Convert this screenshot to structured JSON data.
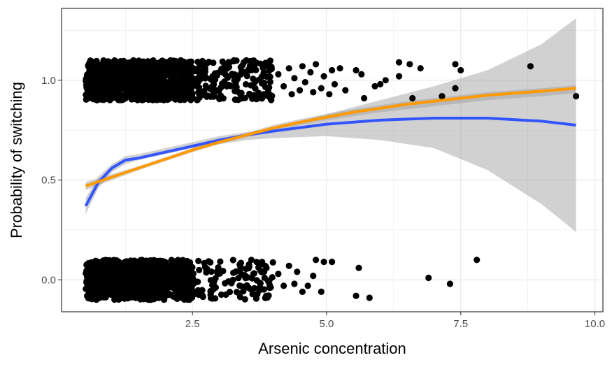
{
  "chart_data": {
    "type": "scatter",
    "title": "",
    "xlabel": "Arsenic concentration",
    "ylabel": "Probability of switching",
    "xlim": [
      0.06,
      10.15
    ],
    "ylim": [
      -0.16,
      1.36
    ],
    "x_ticks": [
      2.5,
      5.0,
      7.5,
      10.0
    ],
    "x_tick_labels": [
      "2.5",
      "5.0",
      "7.5",
      "10.0"
    ],
    "y_ticks": [
      0.0,
      0.5,
      1.0
    ],
    "y_tick_labels": [
      "0.0",
      "0.5",
      "1.0"
    ],
    "grid": true,
    "legend": "none",
    "jitter_height": 0.1,
    "colors": {
      "points": "#000000",
      "loess": "#3355ff",
      "logistic": "#ff9900",
      "ribbon": "#999999",
      "grid": "#ebebeb",
      "panel_border": "#333333"
    },
    "clusters": [
      {
        "y": 1,
        "x_range": [
          0.51,
          2.5
        ],
        "approx_count": 1000
      },
      {
        "y": 1,
        "x_range": [
          2.5,
          4.0
        ],
        "approx_count": 170
      },
      {
        "y": 0,
        "x_range": [
          0.51,
          2.5
        ],
        "approx_count": 800
      },
      {
        "y": 0,
        "x_range": [
          2.5,
          4.0
        ],
        "approx_count": 120
      }
    ],
    "points": [
      {
        "x": 4.1,
        "y": 1.03
      },
      {
        "x": 4.2,
        "y": 0.97
      },
      {
        "x": 4.3,
        "y": 1.06
      },
      {
        "x": 4.35,
        "y": 0.93
      },
      {
        "x": 4.4,
        "y": 1.01
      },
      {
        "x": 4.5,
        "y": 0.95
      },
      {
        "x": 4.55,
        "y": 1.07
      },
      {
        "x": 4.6,
        "y": 0.99
      },
      {
        "x": 4.7,
        "y": 1.04
      },
      {
        "x": 4.75,
        "y": 0.94
      },
      {
        "x": 4.8,
        "y": 1.08
      },
      {
        "x": 4.9,
        "y": 0.96
      },
      {
        "x": 4.95,
        "y": 1.02
      },
      {
        "x": 5.05,
        "y": 0.93
      },
      {
        "x": 5.1,
        "y": 1.05
      },
      {
        "x": 5.15,
        "y": 0.98
      },
      {
        "x": 5.25,
        "y": 1.06
      },
      {
        "x": 5.35,
        "y": 0.95
      },
      {
        "x": 5.55,
        "y": 1.05
      },
      {
        "x": 5.65,
        "y": 1.03
      },
      {
        "x": 5.7,
        "y": 0.91
      },
      {
        "x": 5.9,
        "y": 0.97
      },
      {
        "x": 6.0,
        "y": 0.98
      },
      {
        "x": 6.1,
        "y": 1.0
      },
      {
        "x": 6.35,
        "y": 1.09
      },
      {
        "x": 6.35,
        "y": 1.02
      },
      {
        "x": 6.55,
        "y": 1.08
      },
      {
        "x": 6.6,
        "y": 0.91
      },
      {
        "x": 6.75,
        "y": 1.06
      },
      {
        "x": 7.15,
        "y": 0.92
      },
      {
        "x": 7.4,
        "y": 0.96
      },
      {
        "x": 7.4,
        "y": 1.08
      },
      {
        "x": 7.5,
        "y": 1.05
      },
      {
        "x": 8.8,
        "y": 1.07
      },
      {
        "x": 9.65,
        "y": 0.92
      },
      {
        "x": 4.1,
        "y": 0.03
      },
      {
        "x": 4.2,
        "y": -0.03
      },
      {
        "x": 4.3,
        "y": 0.07
      },
      {
        "x": 4.4,
        "y": -0.02
      },
      {
        "x": 4.45,
        "y": 0.04
      },
      {
        "x": 4.55,
        "y": -0.06
      },
      {
        "x": 4.65,
        "y": -0.03
      },
      {
        "x": 4.75,
        "y": 0.02
      },
      {
        "x": 4.8,
        "y": 0.1
      },
      {
        "x": 4.9,
        "y": -0.06
      },
      {
        "x": 4.95,
        "y": 0.09
      },
      {
        "x": 5.1,
        "y": 0.09
      },
      {
        "x": 5.55,
        "y": -0.08
      },
      {
        "x": 5.6,
        "y": 0.06
      },
      {
        "x": 5.8,
        "y": -0.09
      },
      {
        "x": 6.9,
        "y": 0.01
      },
      {
        "x": 7.3,
        "y": -0.02
      },
      {
        "x": 7.8,
        "y": 0.1
      }
    ],
    "series": [
      {
        "x": [
          0.51,
          0.75,
          1.0,
          1.25,
          1.5,
          2.0,
          2.5,
          3.0,
          3.5,
          4.0,
          5.0,
          6.0,
          7.0,
          8.0,
          9.0,
          9.65
        ],
        "y": [
          0.37,
          0.49,
          0.56,
          0.6,
          0.61,
          0.64,
          0.67,
          0.7,
          0.725,
          0.745,
          0.78,
          0.8,
          0.81,
          0.81,
          0.795,
          0.775
        ],
        "ci_lower": [
          0.33,
          0.46,
          0.54,
          0.58,
          0.6,
          0.63,
          0.66,
          0.68,
          0.7,
          0.71,
          0.72,
          0.7,
          0.66,
          0.55,
          0.38,
          0.24
        ],
        "ci_upper": [
          0.41,
          0.52,
          0.58,
          0.62,
          0.63,
          0.66,
          0.69,
          0.72,
          0.74,
          0.76,
          0.83,
          0.9,
          0.97,
          1.05,
          1.18,
          1.31
        ]
      },
      {
        "x": [
          0.51,
          1.0,
          1.5,
          2.0,
          2.5,
          3.0,
          3.5,
          4.0,
          4.5,
          5.0,
          5.5,
          6.0,
          6.5,
          7.0,
          7.5,
          8.0,
          8.5,
          9.0,
          9.65
        ],
        "y": [
          0.47,
          0.515,
          0.56,
          0.605,
          0.65,
          0.69,
          0.725,
          0.76,
          0.79,
          0.815,
          0.84,
          0.86,
          0.88,
          0.895,
          0.91,
          0.925,
          0.935,
          0.945,
          0.96
        ],
        "ci_lower": [
          0.45,
          0.5,
          0.55,
          0.595,
          0.64,
          0.68,
          0.715,
          0.745,
          0.775,
          0.8,
          0.82,
          0.84,
          0.855,
          0.87,
          0.885,
          0.9,
          0.91,
          0.92,
          0.935
        ],
        "ci_upper": [
          0.49,
          0.53,
          0.57,
          0.615,
          0.66,
          0.7,
          0.735,
          0.775,
          0.805,
          0.83,
          0.855,
          0.875,
          0.895,
          0.91,
          0.925,
          0.94,
          0.95,
          0.96,
          0.975
        ]
      }
    ]
  }
}
